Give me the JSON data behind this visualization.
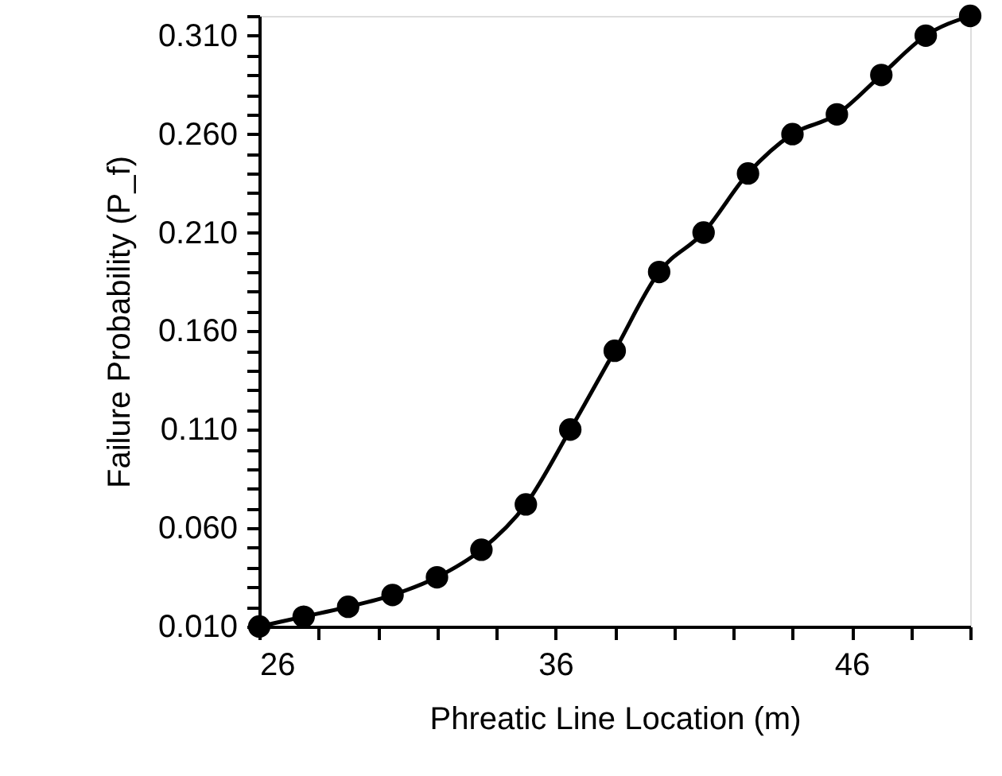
{
  "chart_data": {
    "type": "line",
    "xlabel": "Phreatic Line Location (m)",
    "ylabel": "Failure Probability (P_f)",
    "x": [
      26,
      27.5,
      29,
      30.5,
      32,
      33.5,
      35,
      36.5,
      38,
      39.5,
      41,
      42.5,
      44,
      45.5,
      47,
      48.5,
      50
    ],
    "series": [
      {
        "color": "#000000",
        "values": [
          0.01,
          0.015,
          0.02,
          0.026,
          0.035,
          0.049,
          0.072,
          0.11,
          0.15,
          0.19,
          0.21,
          0.24,
          0.26,
          0.27,
          0.29,
          0.31,
          0.32
        ]
      }
    ],
    "xlim": [
      26,
      50
    ],
    "xticks": [
      26,
      {
        "value": 28,
        "label": null
      },
      {
        "value": 30,
        "label": null
      },
      {
        "value": 32,
        "label": null
      },
      {
        "value": 34,
        "label": null
      },
      36,
      {
        "value": 38,
        "label": null
      },
      {
        "value": 40,
        "label": null
      },
      {
        "value": 42,
        "label": null
      },
      {
        "value": 44,
        "label": null
      },
      46,
      {
        "value": 48,
        "label": null
      },
      {
        "value": 50,
        "label": null
      }
    ],
    "ylim": [
      0.01,
      0.32
    ],
    "yticks": [
      {
        "value": 0.01,
        "label": "0.010"
      },
      {
        "value": 0.02,
        "label": null
      },
      {
        "value": 0.03,
        "label": null
      },
      {
        "value": 0.04,
        "label": null
      },
      {
        "value": 0.05,
        "label": null
      },
      {
        "value": 0.06,
        "label": "0.060"
      },
      {
        "value": 0.07,
        "label": null
      },
      {
        "value": 0.08,
        "label": null
      },
      {
        "value": 0.09,
        "label": null
      },
      {
        "value": 0.1,
        "label": null
      },
      {
        "value": 0.11,
        "label": "0.110"
      },
      {
        "value": 0.12,
        "label": null
      },
      {
        "value": 0.13,
        "label": null
      },
      {
        "value": 0.14,
        "label": null
      },
      {
        "value": 0.15,
        "label": null
      },
      {
        "value": 0.16,
        "label": "0.160"
      },
      {
        "value": 0.17,
        "label": null
      },
      {
        "value": 0.18,
        "label": null
      },
      {
        "value": 0.19,
        "label": null
      },
      {
        "value": 0.2,
        "label": null
      },
      {
        "value": 0.21,
        "label": "0.210"
      },
      {
        "value": 0.22,
        "label": null
      },
      {
        "value": 0.23,
        "label": null
      },
      {
        "value": 0.24,
        "label": null
      },
      {
        "value": 0.25,
        "label": null
      },
      {
        "value": 0.26,
        "label": "0.260"
      },
      {
        "value": 0.27,
        "label": null
      },
      {
        "value": 0.28,
        "label": null
      },
      {
        "value": 0.29,
        "label": null
      },
      {
        "value": 0.3,
        "label": null
      },
      {
        "value": 0.31,
        "label": "0.310"
      },
      {
        "value": 0.32,
        "label": null
      }
    ],
    "grid": false,
    "marker": "circle",
    "line_style": "solid"
  }
}
